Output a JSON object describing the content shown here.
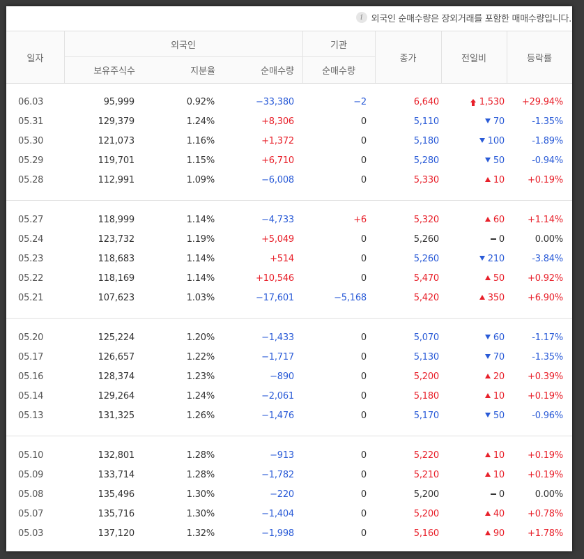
{
  "notice": {
    "icon": "info-icon",
    "text": "외국인 순매수량은 장외거래를 포함한 매매수량입니다."
  },
  "header": {
    "date": "일자",
    "foreign": "외국인",
    "institution": "기관",
    "holding": "보유주식수",
    "ratio": "지분율",
    "foreign_net": "순매수량",
    "inst_net": "순매수량",
    "close": "종가",
    "change": "전일비",
    "rate": "등락률"
  },
  "colors": {
    "up": "#e8202a",
    "down": "#2a5bd7",
    "flat": "#333333"
  },
  "groups": [
    [
      {
        "date": "06.03",
        "holding": "95,999",
        "ratio": "0.92%",
        "foreign_net": "−33,380",
        "foreign_dir": "down",
        "inst_net": "−2",
        "inst_dir": "down",
        "close": "6,640",
        "dir": "up",
        "arrow": "limit-up",
        "change": "1,530",
        "rate": "+29.94%"
      },
      {
        "date": "05.31",
        "holding": "129,379",
        "ratio": "1.24%",
        "foreign_net": "+8,306",
        "foreign_dir": "up",
        "inst_net": "0",
        "inst_dir": "flat",
        "close": "5,110",
        "dir": "down",
        "arrow": "down",
        "change": "70",
        "rate": "-1.35%"
      },
      {
        "date": "05.30",
        "holding": "121,073",
        "ratio": "1.16%",
        "foreign_net": "+1,372",
        "foreign_dir": "up",
        "inst_net": "0",
        "inst_dir": "flat",
        "close": "5,180",
        "dir": "down",
        "arrow": "down",
        "change": "100",
        "rate": "-1.89%"
      },
      {
        "date": "05.29",
        "holding": "119,701",
        "ratio": "1.15%",
        "foreign_net": "+6,710",
        "foreign_dir": "up",
        "inst_net": "0",
        "inst_dir": "flat",
        "close": "5,280",
        "dir": "down",
        "arrow": "down",
        "change": "50",
        "rate": "-0.94%"
      },
      {
        "date": "05.28",
        "holding": "112,991",
        "ratio": "1.09%",
        "foreign_net": "−6,008",
        "foreign_dir": "down",
        "inst_net": "0",
        "inst_dir": "flat",
        "close": "5,330",
        "dir": "up",
        "arrow": "up",
        "change": "10",
        "rate": "+0.19%"
      }
    ],
    [
      {
        "date": "05.27",
        "holding": "118,999",
        "ratio": "1.14%",
        "foreign_net": "−4,733",
        "foreign_dir": "down",
        "inst_net": "+6",
        "inst_dir": "up",
        "close": "5,320",
        "dir": "up",
        "arrow": "up",
        "change": "60",
        "rate": "+1.14%"
      },
      {
        "date": "05.24",
        "holding": "123,732",
        "ratio": "1.19%",
        "foreign_net": "+5,049",
        "foreign_dir": "up",
        "inst_net": "0",
        "inst_dir": "flat",
        "close": "5,260",
        "dir": "flat",
        "arrow": "flat",
        "change": "0",
        "rate": "0.00%"
      },
      {
        "date": "05.23",
        "holding": "118,683",
        "ratio": "1.14%",
        "foreign_net": "+514",
        "foreign_dir": "up",
        "inst_net": "0",
        "inst_dir": "flat",
        "close": "5,260",
        "dir": "down",
        "arrow": "down",
        "change": "210",
        "rate": "-3.84%"
      },
      {
        "date": "05.22",
        "holding": "118,169",
        "ratio": "1.14%",
        "foreign_net": "+10,546",
        "foreign_dir": "up",
        "inst_net": "0",
        "inst_dir": "flat",
        "close": "5,470",
        "dir": "up",
        "arrow": "up",
        "change": "50",
        "rate": "+0.92%"
      },
      {
        "date": "05.21",
        "holding": "107,623",
        "ratio": "1.03%",
        "foreign_net": "−17,601",
        "foreign_dir": "down",
        "inst_net": "−5,168",
        "inst_dir": "down",
        "close": "5,420",
        "dir": "up",
        "arrow": "up",
        "change": "350",
        "rate": "+6.90%"
      }
    ],
    [
      {
        "date": "05.20",
        "holding": "125,224",
        "ratio": "1.20%",
        "foreign_net": "−1,433",
        "foreign_dir": "down",
        "inst_net": "0",
        "inst_dir": "flat",
        "close": "5,070",
        "dir": "down",
        "arrow": "down",
        "change": "60",
        "rate": "-1.17%"
      },
      {
        "date": "05.17",
        "holding": "126,657",
        "ratio": "1.22%",
        "foreign_net": "−1,717",
        "foreign_dir": "down",
        "inst_net": "0",
        "inst_dir": "flat",
        "close": "5,130",
        "dir": "down",
        "arrow": "down",
        "change": "70",
        "rate": "-1.35%"
      },
      {
        "date": "05.16",
        "holding": "128,374",
        "ratio": "1.23%",
        "foreign_net": "−890",
        "foreign_dir": "down",
        "inst_net": "0",
        "inst_dir": "flat",
        "close": "5,200",
        "dir": "up",
        "arrow": "up",
        "change": "20",
        "rate": "+0.39%"
      },
      {
        "date": "05.14",
        "holding": "129,264",
        "ratio": "1.24%",
        "foreign_net": "−2,061",
        "foreign_dir": "down",
        "inst_net": "0",
        "inst_dir": "flat",
        "close": "5,180",
        "dir": "up",
        "arrow": "up",
        "change": "10",
        "rate": "+0.19%"
      },
      {
        "date": "05.13",
        "holding": "131,325",
        "ratio": "1.26%",
        "foreign_net": "−1,476",
        "foreign_dir": "down",
        "inst_net": "0",
        "inst_dir": "flat",
        "close": "5,170",
        "dir": "down",
        "arrow": "down",
        "change": "50",
        "rate": "-0.96%"
      }
    ],
    [
      {
        "date": "05.10",
        "holding": "132,801",
        "ratio": "1.28%",
        "foreign_net": "−913",
        "foreign_dir": "down",
        "inst_net": "0",
        "inst_dir": "flat",
        "close": "5,220",
        "dir": "up",
        "arrow": "up",
        "change": "10",
        "rate": "+0.19%"
      },
      {
        "date": "05.09",
        "holding": "133,714",
        "ratio": "1.28%",
        "foreign_net": "−1,782",
        "foreign_dir": "down",
        "inst_net": "0",
        "inst_dir": "flat",
        "close": "5,210",
        "dir": "up",
        "arrow": "up",
        "change": "10",
        "rate": "+0.19%"
      },
      {
        "date": "05.08",
        "holding": "135,496",
        "ratio": "1.30%",
        "foreign_net": "−220",
        "foreign_dir": "down",
        "inst_net": "0",
        "inst_dir": "flat",
        "close": "5,200",
        "dir": "flat",
        "arrow": "flat",
        "change": "0",
        "rate": "0.00%"
      },
      {
        "date": "05.07",
        "holding": "135,716",
        "ratio": "1.30%",
        "foreign_net": "−1,404",
        "foreign_dir": "down",
        "inst_net": "0",
        "inst_dir": "flat",
        "close": "5,200",
        "dir": "up",
        "arrow": "up",
        "change": "40",
        "rate": "+0.78%"
      },
      {
        "date": "05.03",
        "holding": "137,120",
        "ratio": "1.32%",
        "foreign_net": "−1,998",
        "foreign_dir": "down",
        "inst_net": "0",
        "inst_dir": "flat",
        "close": "5,160",
        "dir": "up",
        "arrow": "up",
        "change": "90",
        "rate": "+1.78%"
      }
    ]
  ]
}
